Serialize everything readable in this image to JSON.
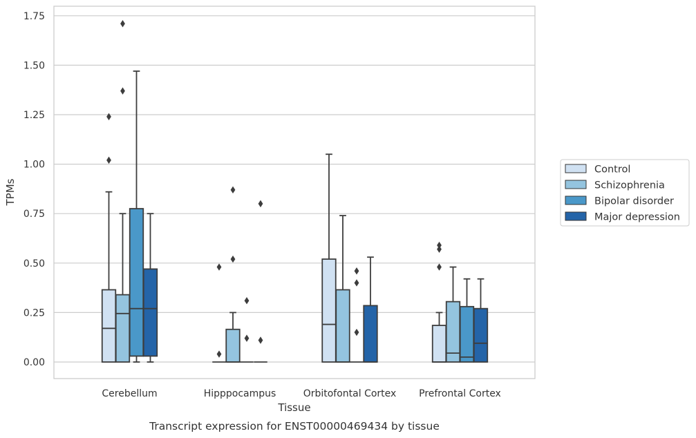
{
  "chart_data": {
    "type": "box",
    "caption": "Transcript expression for ENST00000469434 by tissue",
    "xlabel": "Tissue",
    "ylabel": "TPMs",
    "ylim": [
      -0.08,
      1.8
    ],
    "yticks": [
      "0.00",
      "0.25",
      "0.50",
      "0.75",
      "1.00",
      "1.25",
      "1.50",
      "1.75"
    ],
    "ytick_values": [
      0,
      0.25,
      0.5,
      0.75,
      1.0,
      1.25,
      1.5,
      1.75
    ],
    "grid": "horizontal",
    "legend_position": "right",
    "categories": [
      "Cerebellum",
      "Hipppocampus",
      "Orbitofontal Cortex",
      "Prefrontal Cortex"
    ],
    "series": [
      {
        "name": "Control",
        "color": "#d0e1f2",
        "boxes": [
          {
            "whisker_low": 0,
            "q1": 0,
            "median": 0.17,
            "q3": 0.365,
            "whisker_high": 0.86,
            "outliers": [
              1.02,
              1.24
            ]
          },
          {
            "whisker_low": 0,
            "q1": 0,
            "median": 0,
            "q3": 0,
            "whisker_high": 0,
            "outliers": [
              0.04,
              0.48
            ]
          },
          {
            "whisker_low": 0,
            "q1": 0,
            "median": 0.19,
            "q3": 0.52,
            "whisker_high": 1.05,
            "outliers": []
          },
          {
            "whisker_low": 0,
            "q1": 0,
            "median": 0,
            "q3": 0.185,
            "whisker_high": 0.25,
            "outliers": [
              0.48,
              0.57,
              0.59
            ]
          }
        ]
      },
      {
        "name": "Schizophrenia",
        "color": "#94c4df",
        "boxes": [
          {
            "whisker_low": 0,
            "q1": 0,
            "median": 0.245,
            "q3": 0.34,
            "whisker_high": 0.75,
            "outliers": [
              1.37,
              1.71
            ]
          },
          {
            "whisker_low": 0,
            "q1": 0,
            "median": 0,
            "q3": 0.165,
            "whisker_high": 0.25,
            "outliers": [
              0.52,
              0.87
            ]
          },
          {
            "whisker_low": 0,
            "q1": 0,
            "median": 0,
            "q3": 0.365,
            "whisker_high": 0.74,
            "outliers": []
          },
          {
            "whisker_low": 0,
            "q1": 0,
            "median": 0.045,
            "q3": 0.305,
            "whisker_high": 0.48,
            "outliers": []
          }
        ]
      },
      {
        "name": "Bipolar disorder",
        "color": "#4a98c9",
        "boxes": [
          {
            "whisker_low": 0,
            "q1": 0.03,
            "median": 0.27,
            "q3": 0.775,
            "whisker_high": 1.47,
            "outliers": []
          },
          {
            "whisker_low": 0,
            "q1": 0,
            "median": 0,
            "q3": 0,
            "whisker_high": 0,
            "outliers": [
              0.12,
              0.31
            ]
          },
          {
            "whisker_low": 0,
            "q1": 0,
            "median": 0,
            "q3": 0,
            "whisker_high": 0,
            "outliers": [
              0.15,
              0.4,
              0.46
            ]
          },
          {
            "whisker_low": 0,
            "q1": 0,
            "median": 0.025,
            "q3": 0.28,
            "whisker_high": 0.42,
            "outliers": []
          }
        ]
      },
      {
        "name": "Major depression",
        "color": "#2464a8",
        "boxes": [
          {
            "whisker_low": 0,
            "q1": 0.03,
            "median": 0.27,
            "q3": 0.47,
            "whisker_high": 0.75,
            "outliers": []
          },
          {
            "whisker_low": 0,
            "q1": 0,
            "median": 0,
            "q3": 0,
            "whisker_high": 0,
            "outliers": [
              0.11,
              0.8
            ]
          },
          {
            "whisker_low": 0,
            "q1": 0,
            "median": 0,
            "q3": 0.285,
            "whisker_high": 0.53,
            "outliers": []
          },
          {
            "whisker_low": 0,
            "q1": 0,
            "median": 0.095,
            "q3": 0.27,
            "whisker_high": 0.42,
            "outliers": []
          }
        ]
      }
    ]
  }
}
